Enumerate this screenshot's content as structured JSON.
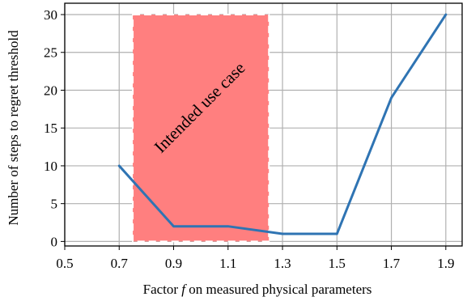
{
  "chart_data": {
    "type": "line",
    "xlabel_prefix": "Factor ",
    "xlabel_var": "f",
    "xlabel_suffix": " on measured physical parameters",
    "ylabel": "Number of steps to regret threshold",
    "xlim": [
      0.5,
      1.96
    ],
    "ylim": [
      -0.6,
      31.5
    ],
    "xticks": [
      "0.5",
      "0.7",
      "0.9",
      "1.1",
      "1.3",
      "1.5",
      "1.7",
      "1.9"
    ],
    "yticks": [
      "0",
      "5",
      "10",
      "15",
      "20",
      "25",
      "30"
    ],
    "grid": true,
    "series": [
      {
        "color": "#2f74b3",
        "x": [
          0.7,
          0.9,
          1.1,
          1.3,
          1.5,
          1.7,
          1.9
        ],
        "y": [
          10,
          2,
          2,
          1,
          1,
          19,
          30
        ]
      }
    ],
    "shaded_region": {
      "x": [
        0.75,
        1.25
      ],
      "y": [
        0,
        30
      ],
      "fill": "#ff7f7f",
      "label": "Intended use case"
    }
  }
}
